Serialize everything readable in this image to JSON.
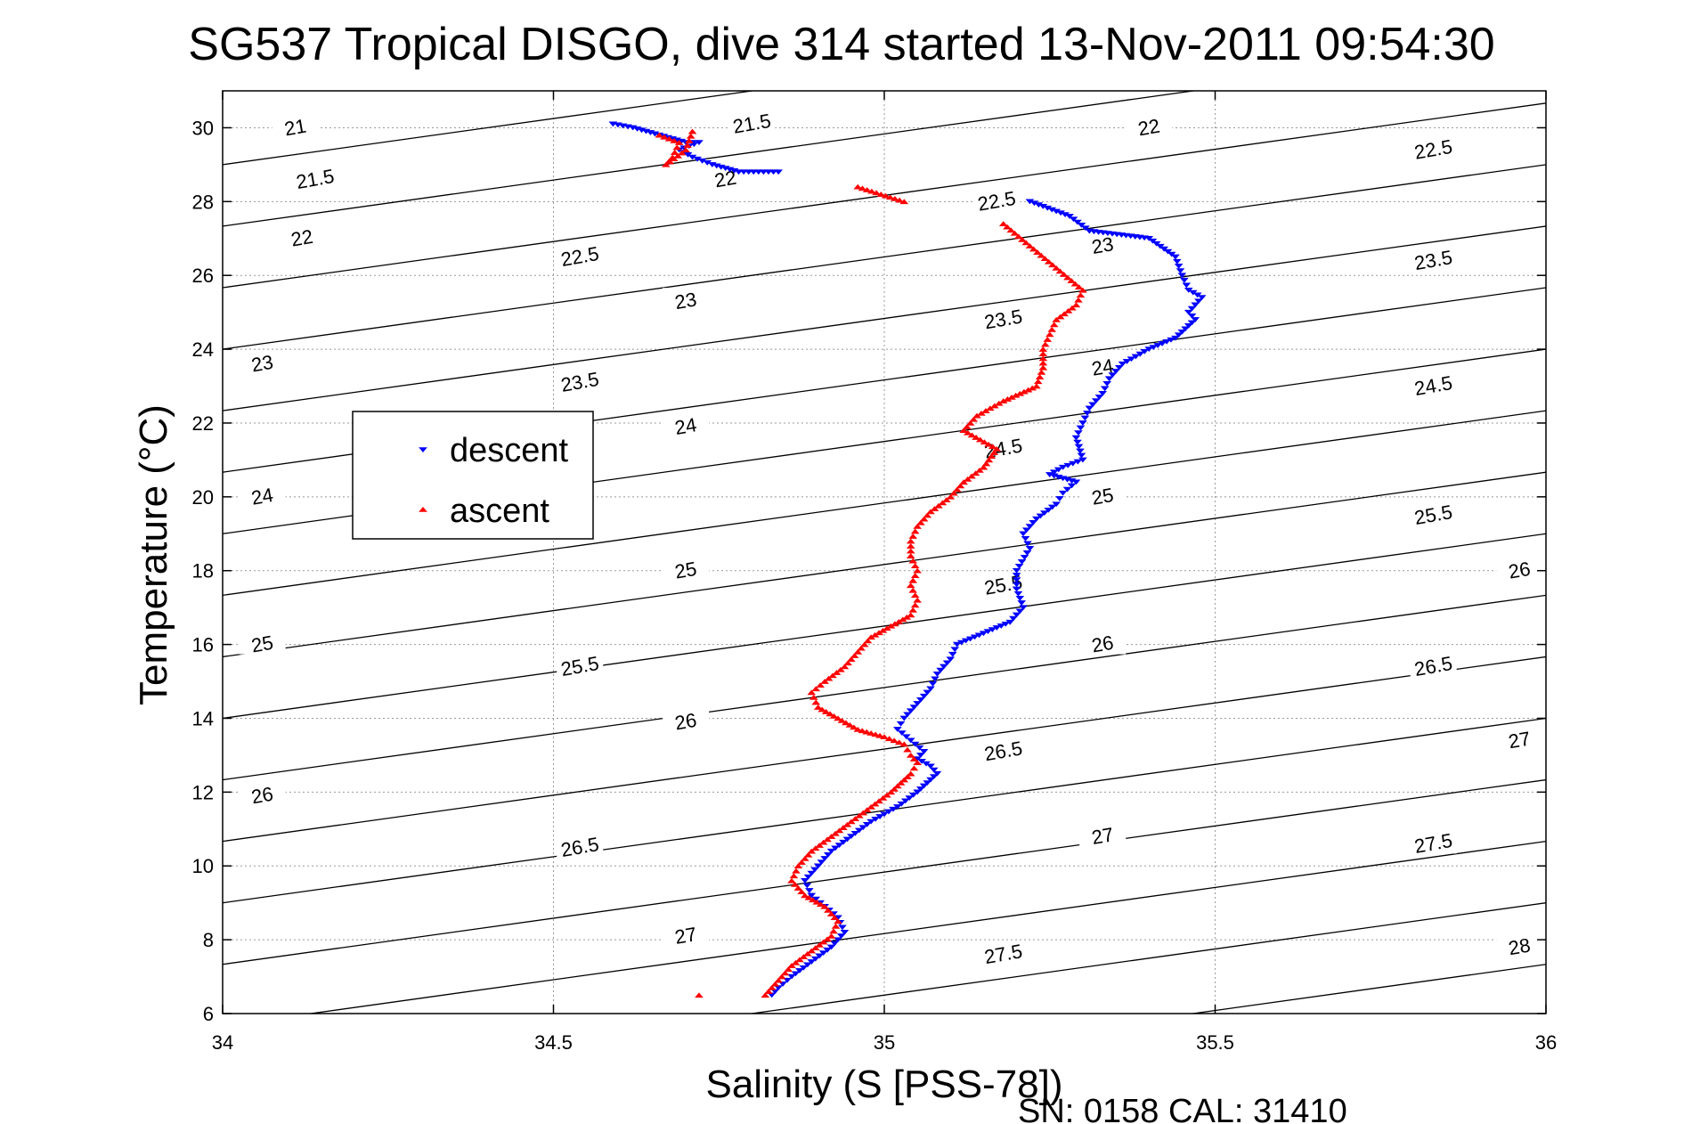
{
  "chart_data": {
    "type": "scatter",
    "title": "SG537 Tropical DISGO, dive 314 started 13-Nov-2011 09:54:30",
    "xlabel": "Salinity (S [PSS-78])",
    "ylabel": "Temperature (°C)",
    "xlim": [
      34,
      36
    ],
    "ylim": [
      6,
      31
    ],
    "xticks": [
      "34",
      "34.5",
      "35",
      "35.5",
      "36"
    ],
    "yticks": [
      "6",
      "8",
      "10",
      "12",
      "14",
      "16",
      "18",
      "20",
      "22",
      "24",
      "26",
      "28",
      "30"
    ],
    "grid": true,
    "legend_position": "middle-left",
    "annotation": "SN: 0158  CAL: 31410",
    "colors": {
      "descent": "#0000ff",
      "ascent": "#ff0000",
      "contours": "#000000",
      "grid": "#999999"
    },
    "density_contours": {
      "levels": [
        "21",
        "21.5",
        "22",
        "22.5",
        "23",
        "23.5",
        "24",
        "24.5",
        "25",
        "25.5",
        "26",
        "26.5",
        "27",
        "27.5",
        "28"
      ],
      "labels": [
        {
          "text": "21",
          "s": 34.11,
          "t": 30.0
        },
        {
          "text": "21.5",
          "s": 34.8,
          "t": 30.1
        },
        {
          "text": "22",
          "s": 35.4,
          "t": 30.0
        },
        {
          "text": "21.5",
          "s": 34.14,
          "t": 28.6
        },
        {
          "text": "22",
          "s": 34.76,
          "t": 28.6
        },
        {
          "text": "22.5",
          "s": 35.17,
          "t": 28.0
        },
        {
          "text": "22.5",
          "s": 35.83,
          "t": 29.4
        },
        {
          "text": "22",
          "s": 34.12,
          "t": 27.0
        },
        {
          "text": "22.5",
          "s": 34.54,
          "t": 26.5
        },
        {
          "text": "23",
          "s": 35.33,
          "t": 26.8
        },
        {
          "text": "23",
          "s": 34.7,
          "t": 25.3
        },
        {
          "text": "23.5",
          "s": 35.18,
          "t": 24.8
        },
        {
          "text": "23.5",
          "s": 35.83,
          "t": 26.4
        },
        {
          "text": "23",
          "s": 34.06,
          "t": 23.6
        },
        {
          "text": "23.5",
          "s": 34.54,
          "t": 23.1
        },
        {
          "text": "24",
          "s": 35.33,
          "t": 23.5
        },
        {
          "text": "24",
          "s": 34.7,
          "t": 21.9
        },
        {
          "text": "24.5",
          "s": 35.18,
          "t": 21.3
        },
        {
          "text": "24.5",
          "s": 35.83,
          "t": 23.0
        },
        {
          "text": "24",
          "s": 34.06,
          "t": 20.0
        },
        {
          "text": "25",
          "s": 35.33,
          "t": 20.0
        },
        {
          "text": "25.5",
          "s": 35.83,
          "t": 19.5
        },
        {
          "text": "25",
          "s": 34.7,
          "t": 18.0
        },
        {
          "text": "25.5",
          "s": 35.18,
          "t": 17.6
        },
        {
          "text": "26",
          "s": 35.96,
          "t": 18.0
        },
        {
          "text": "25",
          "s": 34.06,
          "t": 16.0
        },
        {
          "text": "25.5",
          "s": 34.54,
          "t": 15.4
        },
        {
          "text": "26",
          "s": 35.33,
          "t": 16.0
        },
        {
          "text": "26.5",
          "s": 35.83,
          "t": 15.4
        },
        {
          "text": "26",
          "s": 34.7,
          "t": 13.9
        },
        {
          "text": "26.5",
          "s": 35.18,
          "t": 13.1
        },
        {
          "text": "27",
          "s": 35.96,
          "t": 13.4
        },
        {
          "text": "26",
          "s": 34.06,
          "t": 11.9
        },
        {
          "text": "26.5",
          "s": 34.54,
          "t": 10.5
        },
        {
          "text": "27",
          "s": 35.33,
          "t": 10.8
        },
        {
          "text": "27.5",
          "s": 35.83,
          "t": 10.6
        },
        {
          "text": "27",
          "s": 34.7,
          "t": 8.1
        },
        {
          "text": "27.5",
          "s": 35.18,
          "t": 7.6
        },
        {
          "text": "28",
          "s": 35.96,
          "t": 7.8
        }
      ]
    },
    "series": [
      {
        "name": "descent",
        "marker": "triangle-down",
        "points": [
          [
            34.59,
            30.1
          ],
          [
            34.62,
            30.0
          ],
          [
            34.64,
            29.9
          ],
          [
            34.66,
            29.8
          ],
          [
            34.68,
            29.7
          ],
          [
            34.7,
            29.6
          ],
          [
            34.72,
            29.6
          ],
          [
            34.69,
            29.4
          ],
          [
            34.71,
            29.2
          ],
          [
            34.74,
            29.0
          ],
          [
            34.78,
            28.8
          ],
          [
            34.84,
            28.8
          ],
          [
            35.22,
            28.0
          ],
          [
            35.28,
            27.6
          ],
          [
            35.31,
            27.2
          ],
          [
            35.4,
            27.0
          ],
          [
            35.44,
            26.5
          ],
          [
            35.45,
            26.0
          ],
          [
            35.46,
            25.6
          ],
          [
            35.48,
            25.4
          ],
          [
            35.46,
            25.0
          ],
          [
            35.47,
            24.8
          ],
          [
            35.44,
            24.3
          ],
          [
            35.4,
            24.0
          ],
          [
            35.36,
            23.6
          ],
          [
            35.34,
            23.2
          ],
          [
            35.33,
            22.8
          ],
          [
            35.31,
            22.4
          ],
          [
            35.3,
            22.0
          ],
          [
            35.29,
            21.6
          ],
          [
            35.3,
            21.0
          ],
          [
            35.27,
            20.8
          ],
          [
            35.25,
            20.6
          ],
          [
            35.29,
            20.4
          ],
          [
            35.27,
            20.1
          ],
          [
            35.26,
            19.8
          ],
          [
            35.23,
            19.4
          ],
          [
            35.21,
            19.0
          ],
          [
            35.22,
            18.6
          ],
          [
            35.2,
            18.0
          ],
          [
            35.2,
            17.5
          ],
          [
            35.21,
            17.0
          ],
          [
            35.19,
            16.6
          ],
          [
            35.15,
            16.3
          ],
          [
            35.11,
            16.0
          ],
          [
            35.1,
            15.6
          ],
          [
            35.08,
            15.2
          ],
          [
            35.07,
            14.8
          ],
          [
            35.05,
            14.4
          ],
          [
            35.03,
            14.0
          ],
          [
            35.02,
            13.7
          ],
          [
            35.04,
            13.4
          ],
          [
            35.06,
            13.1
          ],
          [
            35.05,
            12.9
          ],
          [
            35.07,
            12.7
          ],
          [
            35.08,
            12.5
          ],
          [
            35.05,
            12.0
          ],
          [
            35.02,
            11.6
          ],
          [
            34.98,
            11.2
          ],
          [
            34.95,
            10.8
          ],
          [
            34.92,
            10.4
          ],
          [
            34.9,
            10.0
          ],
          [
            34.88,
            9.6
          ],
          [
            34.89,
            9.2
          ],
          [
            34.91,
            8.9
          ],
          [
            34.93,
            8.6
          ],
          [
            34.94,
            8.2
          ],
          [
            34.92,
            7.8
          ],
          [
            34.89,
            7.4
          ],
          [
            34.86,
            7.0
          ],
          [
            34.84,
            6.7
          ],
          [
            34.83,
            6.5
          ]
        ]
      },
      {
        "name": "ascent",
        "marker": "triangle-up",
        "points": [
          [
            34.66,
            29.8
          ],
          [
            34.69,
            29.6
          ],
          [
            34.68,
            29.2
          ],
          [
            34.67,
            29.0
          ],
          [
            34.7,
            29.4
          ],
          [
            34.71,
            29.9
          ],
          [
            34.96,
            28.4
          ],
          [
            35.03,
            28.0
          ],
          [
            35.18,
            27.4
          ],
          [
            35.22,
            26.8
          ],
          [
            35.26,
            26.2
          ],
          [
            35.3,
            25.6
          ],
          [
            35.29,
            25.2
          ],
          [
            35.26,
            24.8
          ],
          [
            35.25,
            24.4
          ],
          [
            35.24,
            24.0
          ],
          [
            35.24,
            23.5
          ],
          [
            35.23,
            23.0
          ],
          [
            35.18,
            22.6
          ],
          [
            35.14,
            22.2
          ],
          [
            35.12,
            21.8
          ],
          [
            35.17,
            21.3
          ],
          [
            35.15,
            20.8
          ],
          [
            35.12,
            20.4
          ],
          [
            35.1,
            20.0
          ],
          [
            35.07,
            19.6
          ],
          [
            35.05,
            19.2
          ],
          [
            35.04,
            18.8
          ],
          [
            35.04,
            18.4
          ],
          [
            35.05,
            18.0
          ],
          [
            35.04,
            17.6
          ],
          [
            35.05,
            17.2
          ],
          [
            35.04,
            16.8
          ],
          [
            35.01,
            16.5
          ],
          [
            34.98,
            16.2
          ],
          [
            34.96,
            15.8
          ],
          [
            34.94,
            15.4
          ],
          [
            34.91,
            15.0
          ],
          [
            34.89,
            14.7
          ],
          [
            34.9,
            14.3
          ],
          [
            34.93,
            14.0
          ],
          [
            34.96,
            13.7
          ],
          [
            35.0,
            13.5
          ],
          [
            35.03,
            13.3
          ],
          [
            35.04,
            13.0
          ],
          [
            35.05,
            12.8
          ],
          [
            35.04,
            12.5
          ],
          [
            35.01,
            12.0
          ],
          [
            34.98,
            11.6
          ],
          [
            34.95,
            11.2
          ],
          [
            34.92,
            10.8
          ],
          [
            34.89,
            10.4
          ],
          [
            34.87,
            10.0
          ],
          [
            34.86,
            9.6
          ],
          [
            34.88,
            9.2
          ],
          [
            34.91,
            8.9
          ],
          [
            34.93,
            8.5
          ],
          [
            34.92,
            8.1
          ],
          [
            34.89,
            7.7
          ],
          [
            34.86,
            7.3
          ],
          [
            34.84,
            6.9
          ],
          [
            34.82,
            6.5
          ],
          [
            34.72,
            6.5
          ]
        ]
      }
    ]
  }
}
